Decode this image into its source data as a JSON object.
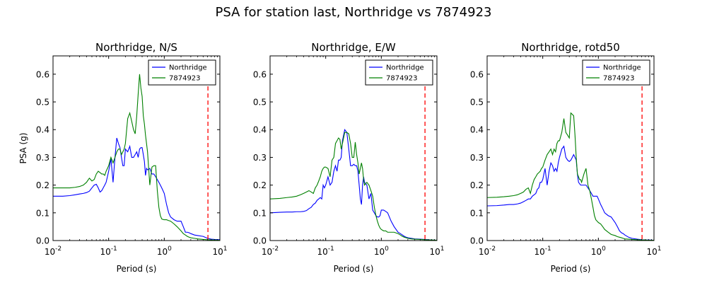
{
  "figure": {
    "suptitle": "PSA for station last, Northridge vs 7874923",
    "ylabel": "PSA (g)",
    "xlabel": "Period (s)"
  },
  "colors": {
    "northridge": "#0000ff",
    "station": "#008000",
    "cutoff": "#ff0000"
  },
  "chart_data": [
    {
      "type": "line",
      "title": "Northridge, N/S",
      "xlabel": "Period (s)",
      "ylabel": "PSA (g)",
      "xscale": "log",
      "xlim": [
        0.01,
        10
      ],
      "ylim": [
        0,
        0.666
      ],
      "xticks": [
        0.01,
        0.1,
        1,
        10
      ],
      "xtick_labels": [
        [
          "10",
          "-2"
        ],
        [
          "10",
          "-1"
        ],
        [
          "10",
          "0"
        ],
        [
          "10",
          "1"
        ]
      ],
      "yticks": [
        0.0,
        0.1,
        0.2,
        0.3,
        0.4,
        0.5,
        0.6
      ],
      "ytick_labels": [
        "0.0",
        "0.1",
        "0.2",
        "0.3",
        "0.4",
        "0.5",
        "0.6"
      ],
      "legend_position": "top-right",
      "cutoff_period": 6.1,
      "series": [
        {
          "name": "Northridge",
          "color": "#0000ff",
          "x": [
            0.01,
            0.015,
            0.02,
            0.025,
            0.03,
            0.035,
            0.04,
            0.045,
            0.05,
            0.055,
            0.06,
            0.065,
            0.07,
            0.075,
            0.08,
            0.085,
            0.09,
            0.095,
            0.1,
            0.11,
            0.12,
            0.13,
            0.14,
            0.15,
            0.16,
            0.17,
            0.18,
            0.19,
            0.2,
            0.22,
            0.24,
            0.26,
            0.28,
            0.3,
            0.32,
            0.34,
            0.36,
            0.38,
            0.4,
            0.42,
            0.44,
            0.46,
            0.48,
            0.5,
            0.55,
            0.6,
            0.65,
            0.7,
            0.75,
            0.8,
            0.85,
            0.9,
            0.95,
            1.0,
            1.1,
            1.2,
            1.3,
            1.5,
            1.7,
            2.0,
            2.2,
            2.4,
            2.6,
            2.8,
            3.0,
            3.5,
            4.0,
            5.0,
            6.0,
            7.0,
            8.0,
            10.0
          ],
          "y": [
            0.16,
            0.16,
            0.162,
            0.165,
            0.168,
            0.17,
            0.173,
            0.178,
            0.19,
            0.2,
            0.203,
            0.19,
            0.175,
            0.18,
            0.19,
            0.2,
            0.21,
            0.23,
            0.25,
            0.295,
            0.21,
            0.3,
            0.37,
            0.35,
            0.335,
            0.3,
            0.27,
            0.27,
            0.33,
            0.32,
            0.34,
            0.3,
            0.3,
            0.31,
            0.32,
            0.3,
            0.33,
            0.335,
            0.335,
            0.31,
            0.285,
            0.235,
            0.26,
            0.255,
            0.26,
            0.24,
            0.24,
            0.23,
            0.22,
            0.21,
            0.2,
            0.19,
            0.18,
            0.17,
            0.13,
            0.1,
            0.085,
            0.075,
            0.07,
            0.07,
            0.05,
            0.03,
            0.03,
            0.028,
            0.025,
            0.02,
            0.018,
            0.015,
            0.008,
            0.005,
            0.004,
            0.003
          ]
        },
        {
          "name": "7874923",
          "color": "#008000",
          "x": [
            0.01,
            0.015,
            0.02,
            0.025,
            0.03,
            0.035,
            0.04,
            0.045,
            0.05,
            0.055,
            0.06,
            0.065,
            0.07,
            0.075,
            0.08,
            0.085,
            0.09,
            0.095,
            0.1,
            0.11,
            0.12,
            0.13,
            0.14,
            0.15,
            0.16,
            0.17,
            0.18,
            0.19,
            0.2,
            0.22,
            0.24,
            0.26,
            0.28,
            0.3,
            0.32,
            0.34,
            0.36,
            0.38,
            0.4,
            0.42,
            0.44,
            0.46,
            0.48,
            0.5,
            0.55,
            0.6,
            0.65,
            0.7,
            0.75,
            0.8,
            0.85,
            0.9,
            0.95,
            1.0,
            1.1,
            1.2,
            1.3,
            1.5,
            1.7,
            2.0,
            2.2,
            2.4,
            2.6,
            2.8,
            3.0,
            3.5,
            4.0,
            5.0,
            6.0,
            7.0,
            8.0,
            10.0
          ],
          "y": [
            0.19,
            0.19,
            0.19,
            0.192,
            0.195,
            0.2,
            0.21,
            0.225,
            0.215,
            0.22,
            0.24,
            0.25,
            0.245,
            0.24,
            0.24,
            0.235,
            0.25,
            0.26,
            0.27,
            0.3,
            0.28,
            0.3,
            0.32,
            0.33,
            0.33,
            0.31,
            0.32,
            0.33,
            0.35,
            0.44,
            0.46,
            0.43,
            0.4,
            0.385,
            0.45,
            0.53,
            0.6,
            0.55,
            0.52,
            0.45,
            0.42,
            0.38,
            0.35,
            0.32,
            0.2,
            0.265,
            0.27,
            0.27,
            0.18,
            0.12,
            0.09,
            0.078,
            0.076,
            0.075,
            0.075,
            0.072,
            0.07,
            0.06,
            0.05,
            0.035,
            0.025,
            0.02,
            0.015,
            0.012,
            0.01,
            0.008,
            0.006,
            0.004,
            0.003,
            0.002,
            0.002,
            0.001
          ]
        }
      ]
    },
    {
      "type": "line",
      "title": "Northridge, E/W",
      "xlabel": "Period (s)",
      "ylabel": "",
      "xscale": "log",
      "xlim": [
        0.01,
        10
      ],
      "ylim": [
        0,
        0.666
      ],
      "xticks": [
        0.01,
        0.1,
        1,
        10
      ],
      "xtick_labels": [
        [
          "10",
          "-2"
        ],
        [
          "10",
          "-1"
        ],
        [
          "10",
          "0"
        ],
        [
          "10",
          "1"
        ]
      ],
      "yticks": [
        0.0,
        0.1,
        0.2,
        0.3,
        0.4,
        0.5,
        0.6
      ],
      "ytick_labels": [
        "0.0",
        "0.1",
        "0.2",
        "0.3",
        "0.4",
        "0.5",
        "0.6"
      ],
      "legend_position": "top-right",
      "cutoff_period": 6.1,
      "series": [
        {
          "name": "Northridge",
          "color": "#0000ff",
          "x": [
            0.01,
            0.015,
            0.02,
            0.025,
            0.03,
            0.035,
            0.04,
            0.045,
            0.05,
            0.055,
            0.06,
            0.065,
            0.07,
            0.075,
            0.08,
            0.085,
            0.09,
            0.095,
            0.1,
            0.11,
            0.12,
            0.13,
            0.14,
            0.15,
            0.16,
            0.17,
            0.18,
            0.19,
            0.2,
            0.22,
            0.24,
            0.26,
            0.28,
            0.3,
            0.32,
            0.34,
            0.36,
            0.38,
            0.4,
            0.42,
            0.44,
            0.46,
            0.48,
            0.5,
            0.55,
            0.6,
            0.65,
            0.7,
            0.75,
            0.8,
            0.85,
            0.9,
            0.95,
            1.0,
            1.1,
            1.2,
            1.3,
            1.5,
            1.7,
            2.0,
            2.2,
            2.4,
            2.6,
            2.8,
            3.0,
            3.5,
            4.0,
            5.0,
            6.0,
            7.0,
            8.0,
            10.0
          ],
          "y": [
            0.1,
            0.102,
            0.103,
            0.103,
            0.104,
            0.104,
            0.105,
            0.108,
            0.115,
            0.12,
            0.13,
            0.135,
            0.145,
            0.15,
            0.155,
            0.15,
            0.2,
            0.19,
            0.2,
            0.23,
            0.2,
            0.21,
            0.25,
            0.27,
            0.25,
            0.29,
            0.29,
            0.3,
            0.36,
            0.4,
            0.39,
            0.33,
            0.27,
            0.27,
            0.275,
            0.27,
            0.27,
            0.25,
            0.2,
            0.15,
            0.13,
            0.2,
            0.23,
            0.21,
            0.2,
            0.15,
            0.17,
            0.11,
            0.1,
            0.09,
            0.085,
            0.085,
            0.09,
            0.11,
            0.11,
            0.105,
            0.1,
            0.07,
            0.05,
            0.03,
            0.025,
            0.02,
            0.015,
            0.012,
            0.01,
            0.008,
            0.006,
            0.005,
            0.004,
            0.003,
            0.002,
            0.001
          ]
        },
        {
          "name": "7874923",
          "color": "#008000",
          "x": [
            0.01,
            0.015,
            0.02,
            0.025,
            0.03,
            0.035,
            0.04,
            0.045,
            0.05,
            0.055,
            0.06,
            0.065,
            0.07,
            0.075,
            0.08,
            0.085,
            0.09,
            0.095,
            0.1,
            0.11,
            0.12,
            0.13,
            0.14,
            0.15,
            0.16,
            0.17,
            0.18,
            0.19,
            0.2,
            0.22,
            0.24,
            0.26,
            0.28,
            0.3,
            0.32,
            0.34,
            0.36,
            0.38,
            0.4,
            0.42,
            0.44,
            0.46,
            0.48,
            0.5,
            0.55,
            0.6,
            0.65,
            0.7,
            0.75,
            0.8,
            0.85,
            0.9,
            0.95,
            1.0,
            1.1,
            1.2,
            1.3,
            1.5,
            1.7,
            2.0,
            2.2,
            2.4,
            2.6,
            2.8,
            3.0,
            3.5,
            4.0,
            5.0,
            6.0,
            7.0,
            8.0,
            10.0
          ],
          "y": [
            0.15,
            0.152,
            0.155,
            0.157,
            0.16,
            0.165,
            0.17,
            0.175,
            0.18,
            0.175,
            0.17,
            0.19,
            0.2,
            0.215,
            0.23,
            0.25,
            0.26,
            0.265,
            0.265,
            0.26,
            0.23,
            0.29,
            0.3,
            0.35,
            0.36,
            0.37,
            0.365,
            0.33,
            0.35,
            0.39,
            0.39,
            0.385,
            0.35,
            0.3,
            0.3,
            0.355,
            0.31,
            0.28,
            0.24,
            0.26,
            0.28,
            0.26,
            0.22,
            0.2,
            0.21,
            0.2,
            0.18,
            0.16,
            0.12,
            0.09,
            0.07,
            0.055,
            0.045,
            0.04,
            0.035,
            0.035,
            0.03,
            0.03,
            0.03,
            0.025,
            0.02,
            0.015,
            0.012,
            0.01,
            0.008,
            0.006,
            0.005,
            0.004,
            0.003,
            0.002,
            0.002,
            0.001
          ]
        }
      ]
    },
    {
      "type": "line",
      "title": "Northridge, rotd50",
      "xlabel": "Period (s)",
      "ylabel": "",
      "xscale": "log",
      "xlim": [
        0.01,
        10
      ],
      "ylim": [
        0,
        0.666
      ],
      "xticks": [
        0.01,
        0.1,
        1,
        10
      ],
      "xtick_labels": [
        [
          "10",
          "-2"
        ],
        [
          "10",
          "-1"
        ],
        [
          "10",
          "0"
        ],
        [
          "10",
          "1"
        ]
      ],
      "yticks": [
        0.0,
        0.1,
        0.2,
        0.3,
        0.4,
        0.5,
        0.6
      ],
      "ytick_labels": [
        "0.0",
        "0.1",
        "0.2",
        "0.3",
        "0.4",
        "0.5",
        "0.6"
      ],
      "legend_position": "top-right",
      "cutoff_period": 6.1,
      "series": [
        {
          "name": "Northridge",
          "color": "#0000ff",
          "x": [
            0.01,
            0.015,
            0.02,
            0.025,
            0.03,
            0.035,
            0.04,
            0.045,
            0.05,
            0.055,
            0.06,
            0.065,
            0.07,
            0.075,
            0.08,
            0.085,
            0.09,
            0.095,
            0.1,
            0.11,
            0.12,
            0.13,
            0.14,
            0.15,
            0.16,
            0.17,
            0.18,
            0.19,
            0.2,
            0.22,
            0.24,
            0.26,
            0.28,
            0.3,
            0.32,
            0.34,
            0.36,
            0.38,
            0.4,
            0.42,
            0.44,
            0.46,
            0.48,
            0.5,
            0.55,
            0.6,
            0.65,
            0.7,
            0.75,
            0.8,
            0.85,
            0.9,
            0.95,
            1.0,
            1.1,
            1.2,
            1.3,
            1.5,
            1.7,
            2.0,
            2.2,
            2.4,
            2.6,
            2.8,
            3.0,
            3.5,
            4.0,
            5.0,
            6.0,
            7.0,
            8.0,
            10.0
          ],
          "y": [
            0.125,
            0.126,
            0.128,
            0.13,
            0.13,
            0.132,
            0.135,
            0.14,
            0.145,
            0.15,
            0.15,
            0.16,
            0.165,
            0.17,
            0.185,
            0.19,
            0.21,
            0.21,
            0.22,
            0.26,
            0.2,
            0.25,
            0.28,
            0.27,
            0.25,
            0.26,
            0.25,
            0.28,
            0.3,
            0.33,
            0.34,
            0.3,
            0.29,
            0.285,
            0.29,
            0.3,
            0.31,
            0.3,
            0.29,
            0.24,
            0.21,
            0.205,
            0.2,
            0.2,
            0.2,
            0.2,
            0.19,
            0.18,
            0.17,
            0.16,
            0.16,
            0.16,
            0.16,
            0.15,
            0.13,
            0.115,
            0.1,
            0.09,
            0.085,
            0.065,
            0.05,
            0.035,
            0.028,
            0.025,
            0.02,
            0.012,
            0.008,
            0.005,
            0.003,
            0.002,
            0.002,
            0.001
          ]
        },
        {
          "name": "7874923",
          "color": "#008000",
          "x": [
            0.01,
            0.015,
            0.02,
            0.025,
            0.03,
            0.035,
            0.04,
            0.045,
            0.05,
            0.055,
            0.06,
            0.065,
            0.07,
            0.075,
            0.08,
            0.085,
            0.09,
            0.095,
            0.1,
            0.11,
            0.12,
            0.13,
            0.14,
            0.15,
            0.16,
            0.17,
            0.18,
            0.19,
            0.2,
            0.22,
            0.24,
            0.26,
            0.28,
            0.3,
            0.32,
            0.34,
            0.36,
            0.38,
            0.4,
            0.42,
            0.44,
            0.46,
            0.48,
            0.5,
            0.55,
            0.6,
            0.65,
            0.7,
            0.75,
            0.8,
            0.85,
            0.9,
            0.95,
            1.0,
            1.1,
            1.2,
            1.3,
            1.5,
            1.7,
            2.0,
            2.2,
            2.4,
            2.6,
            2.8,
            3.0,
            3.5,
            4.0,
            5.0,
            6.0,
            7.0,
            8.0,
            10.0
          ],
          "y": [
            0.155,
            0.156,
            0.158,
            0.16,
            0.162,
            0.165,
            0.17,
            0.175,
            0.185,
            0.19,
            0.17,
            0.2,
            0.22,
            0.23,
            0.24,
            0.245,
            0.25,
            0.26,
            0.265,
            0.29,
            0.31,
            0.32,
            0.33,
            0.31,
            0.33,
            0.32,
            0.35,
            0.36,
            0.36,
            0.39,
            0.44,
            0.39,
            0.38,
            0.37,
            0.46,
            0.455,
            0.45,
            0.38,
            0.3,
            0.24,
            0.23,
            0.22,
            0.22,
            0.21,
            0.24,
            0.26,
            0.2,
            0.18,
            0.15,
            0.12,
            0.09,
            0.075,
            0.07,
            0.065,
            0.06,
            0.05,
            0.04,
            0.03,
            0.022,
            0.018,
            0.014,
            0.012,
            0.01,
            0.008,
            0.006,
            0.005,
            0.004,
            0.003,
            0.002,
            0.002,
            0.001,
            0.001
          ]
        }
      ]
    }
  ]
}
